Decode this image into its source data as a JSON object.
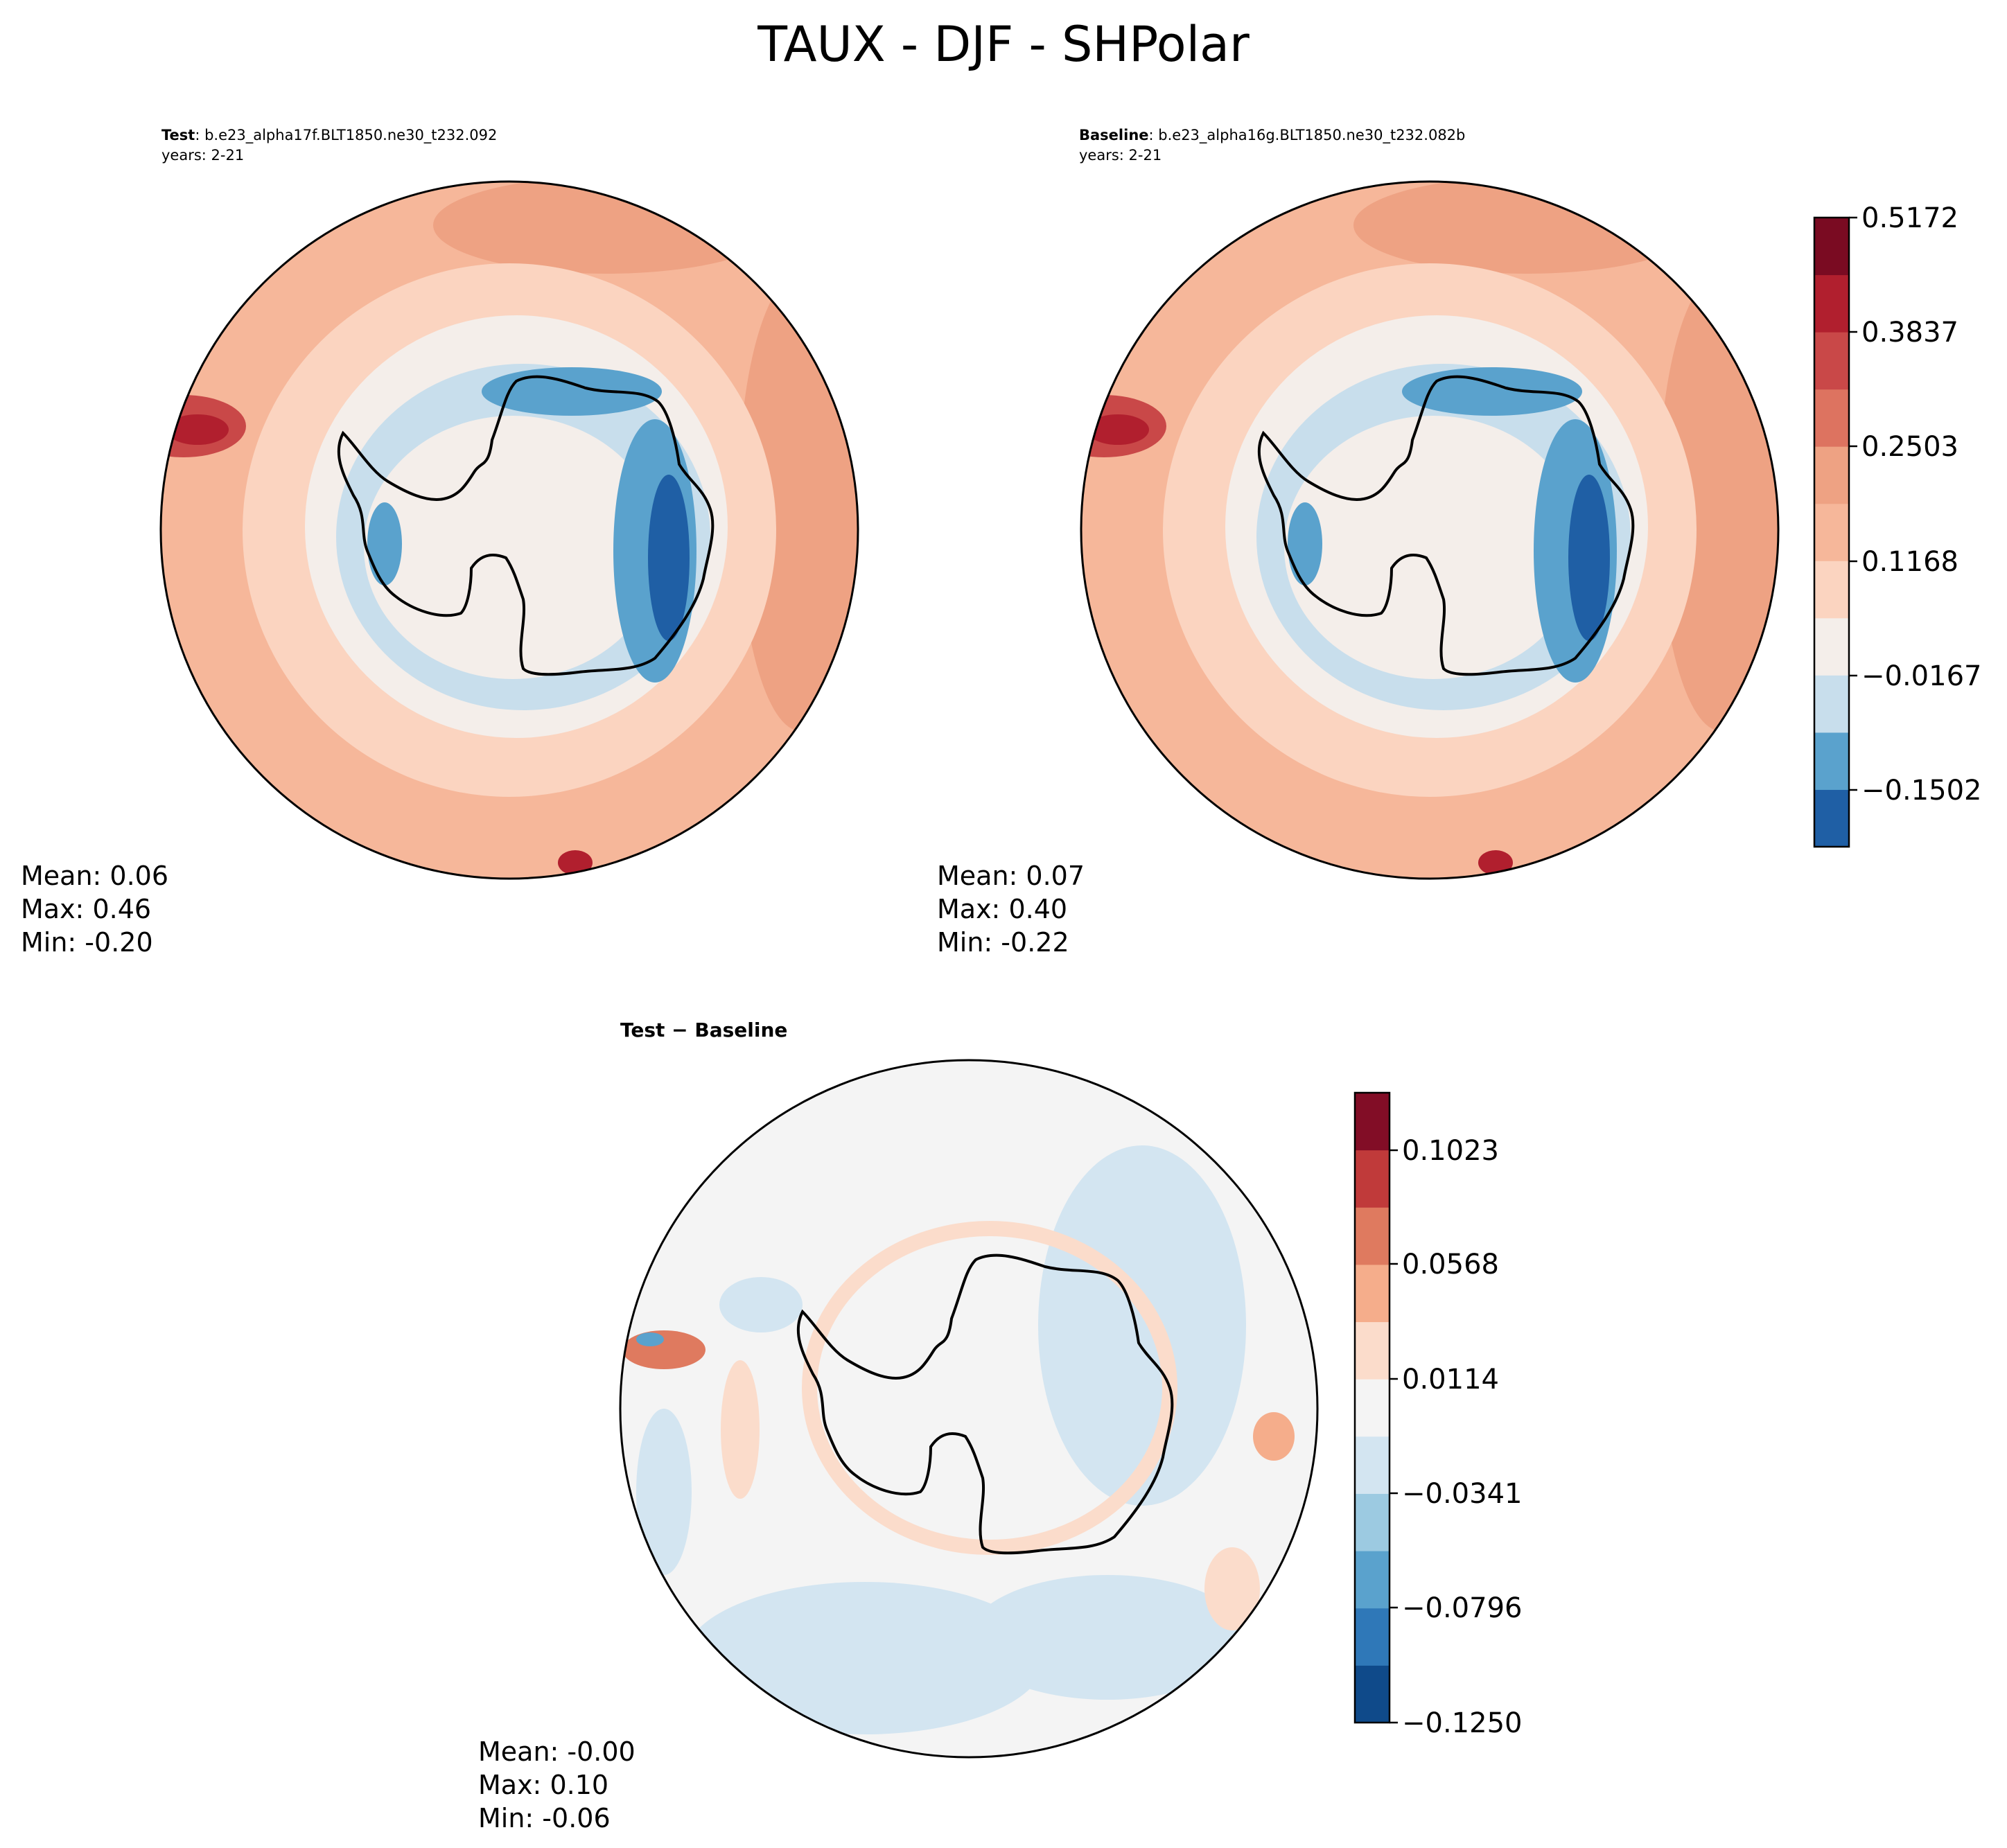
{
  "title": "TAUX - DJF - SHPolar",
  "panels": [
    {
      "label_bold": "Test",
      "label_rest": ": b.e23_alpha17f.BLT1850.ne30_t232.092",
      "years": "years: 2-21",
      "stats": [
        "Mean:  0.06",
        "Max:  0.46",
        "Min: -0.20"
      ]
    },
    {
      "label_bold": "Baseline",
      "label_rest": ": b.e23_alpha16g.BLT1850.ne30_t232.082b",
      "years": "years: 2-21",
      "stats": [
        "Mean:  0.07",
        "Max:  0.40",
        "Min: -0.22"
      ]
    },
    {
      "label": "Test − Baseline",
      "stats": [
        "Mean: -0.00",
        "Max:  0.10",
        "Min: -0.06"
      ]
    }
  ],
  "colorbars": {
    "main": {
      "tick_labels": [
        "0.5172",
        "0.3837",
        "0.2503",
        "0.1168",
        "−0.0167",
        "−0.1502"
      ],
      "levels_approx": [
        -0.2,
        -0.15,
        -0.0834,
        -0.0167,
        0.05,
        0.1168,
        0.1836,
        0.2503,
        0.317,
        0.3837,
        0.4504,
        0.5172
      ],
      "colors": [
        "#1f5fa5",
        "#5aa2cd",
        "#c8deec",
        "#f4eeea",
        "#fbd4c0",
        "#f6b79a",
        "#eea283",
        "#dd7360",
        "#c94848",
        "#b11f2e",
        "#7a0b22"
      ]
    },
    "diff": {
      "tick_labels": [
        "0.1023",
        "0.0568",
        "0.0114",
        "−0.0341",
        "−0.0796",
        "−0.1250"
      ],
      "levels_approx": [
        -0.125,
        -0.1023,
        -0.0796,
        -0.0568,
        -0.0341,
        -0.0114,
        0.0114,
        0.0341,
        0.0568,
        0.0796,
        0.1023,
        0.125
      ],
      "colors": [
        "#0f4a8a",
        "#2f78b8",
        "#5aa2cd",
        "#9ccae1",
        "#d3e5f1",
        "#f4f4f4",
        "#fbdccb",
        "#f5ad8b",
        "#df7a5f",
        "#c03a3a",
        "#820d26"
      ]
    }
  },
  "chart_data": [
    {
      "type": "heatmap",
      "title": "Test",
      "subtitle": "b.e23_alpha17f.BLT1850.ne30_t232.092",
      "projection": "south-polar-stereographic",
      "variable": "TAUX",
      "season": "DJF",
      "colorbar_range": [
        -0.2,
        0.5172
      ],
      "mean": 0.06,
      "max": 0.46,
      "min": -0.2
    },
    {
      "type": "heatmap",
      "title": "Baseline",
      "subtitle": "b.e23_alpha16g.BLT1850.ne30_t232.082b",
      "projection": "south-polar-stereographic",
      "variable": "TAUX",
      "season": "DJF",
      "colorbar_range": [
        -0.2,
        0.5172
      ],
      "mean": 0.07,
      "max": 0.4,
      "min": -0.22
    },
    {
      "type": "heatmap",
      "title": "Test − Baseline",
      "projection": "south-polar-stereographic",
      "variable": "TAUX",
      "season": "DJF",
      "colorbar_range": [
        -0.125,
        0.125
      ],
      "mean": -0.0,
      "max": 0.1,
      "min": -0.06
    }
  ]
}
